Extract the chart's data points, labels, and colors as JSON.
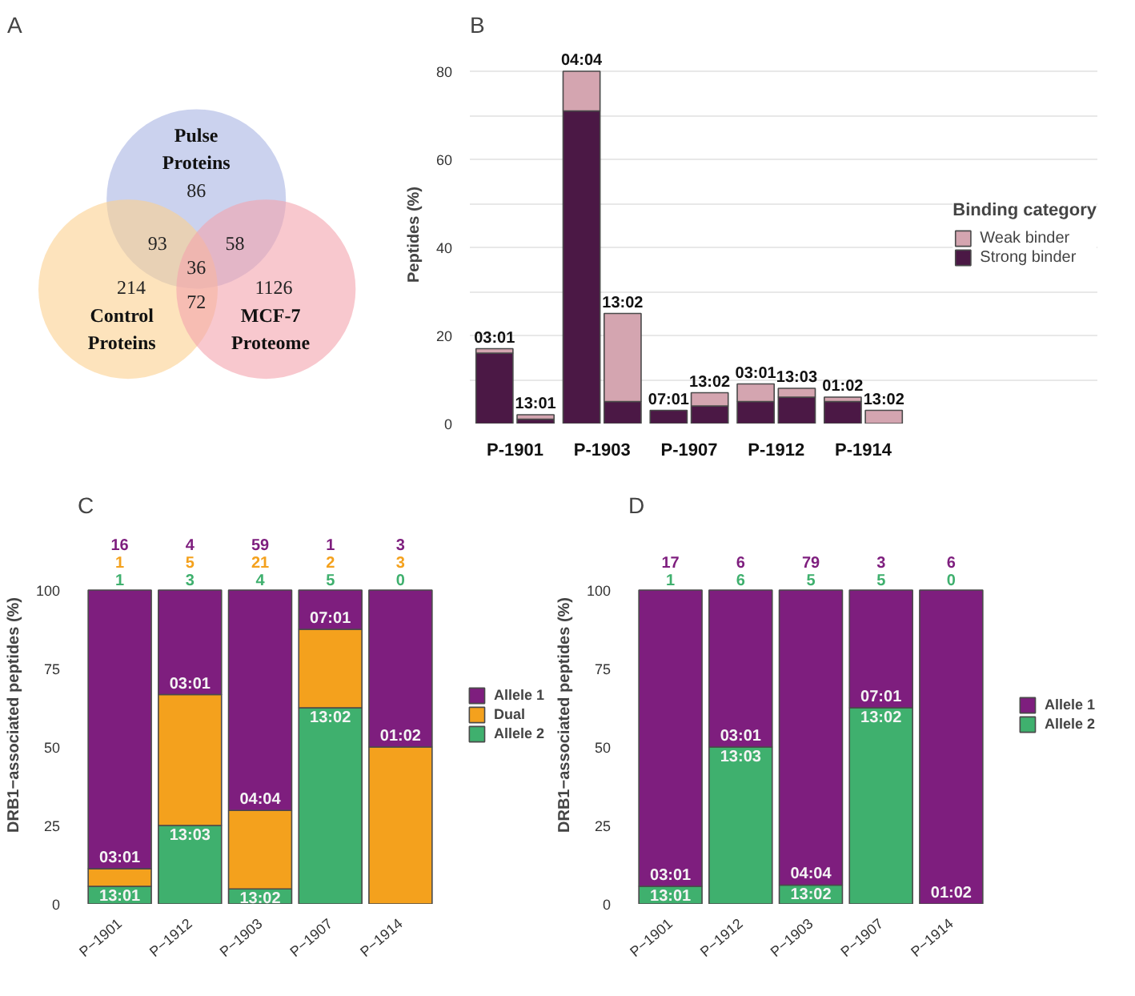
{
  "chart_data": [
    {
      "type": "other",
      "title": "A",
      "categories": [
        "Pulse Proteins",
        "Control Proteins",
        "MCF-7 Proteome"
      ],
      "colors": [
        "#a9b4e2",
        "#fbd08f",
        "#f4a3ad"
      ],
      "annotations": [
        "86",
        "93",
        "58",
        "36",
        "214",
        "72",
        "1126"
      ]
    },
    {
      "type": "bar",
      "title": "B",
      "ylabel": "Peptides (%)",
      "legend_title": "Binding category",
      "stacked": true,
      "categories": [
        "03:01",
        "13:01",
        "04:04",
        "13:02",
        "07:01",
        "13:02",
        "03:01",
        "13:03",
        "01:02",
        "13:02"
      ],
      "series": [
        {
          "name": "Strong binder",
          "color": "#4b1845",
          "values": [
            16,
            1,
            71,
            5,
            3,
            4,
            5,
            6,
            5,
            0
          ]
        },
        {
          "name": "Weak binder",
          "color": "#d4a5b0",
          "values": [
            1,
            1,
            9,
            20,
            0,
            3,
            4,
            2,
            1,
            3
          ]
        }
      ],
      "annotations": [
        "P-1901",
        "P-1903",
        "P-1907",
        "P-1912",
        "P-1914"
      ],
      "ylim": [
        0,
        80
      ],
      "yticks": [
        0,
        {
          "value": 10,
          "label": null
        },
        20,
        {
          "value": 30,
          "label": null
        },
        40,
        {
          "value": 50,
          "label": null
        },
        60,
        {
          "value": 70,
          "label": null
        },
        80
      ],
      "grid": "y",
      "legend": "right"
    },
    {
      "type": "bar",
      "title": "C",
      "ylabel": "DRB1−associated peptides (%)",
      "stacked": true,
      "categories": [
        "P−1901",
        "P−1912",
        "P−1903",
        "P−1907",
        "P−1914"
      ],
      "series": [
        {
          "name": "Allele 2",
          "color": "#3fb06e",
          "values": [
            5.6,
            25,
            4.8,
            62.5,
            0
          ]
        },
        {
          "name": "Dual",
          "color": "#f4a11d",
          "values": [
            5.6,
            41.7,
            25,
            25,
            50
          ]
        },
        {
          "name": "Allele 1",
          "color": "#7e1e7e",
          "values": [
            88.8,
            33.3,
            70.2,
            12.5,
            50
          ]
        }
      ],
      "annotations": [
        {
          "text": "16",
          "x": "P−1901",
          "y": 100
        },
        {
          "text": "1",
          "x": "P−1901",
          "y": 100
        },
        {
          "text": "1",
          "x": "P−1901",
          "y": 100
        },
        {
          "text": "4",
          "x": "P−1912",
          "y": 100
        },
        {
          "text": "5",
          "x": "P−1912",
          "y": 100
        },
        {
          "text": "3",
          "x": "P−1912",
          "y": 100
        },
        {
          "text": "59",
          "x": "P−1903",
          "y": 100
        },
        {
          "text": "21",
          "x": "P−1903",
          "y": 100
        },
        {
          "text": "4",
          "x": "P−1903",
          "y": 100
        },
        {
          "text": "1",
          "x": "P−1907",
          "y": 100
        },
        {
          "text": "2",
          "x": "P−1907",
          "y": 100
        },
        {
          "text": "5",
          "x": "P−1907",
          "y": 100
        },
        {
          "text": "3",
          "x": "P−1914",
          "y": 100
        },
        {
          "text": "3",
          "x": "P−1914",
          "y": 100
        },
        {
          "text": "0",
          "x": "P−1914",
          "y": 100
        },
        {
          "text": "03:01",
          "x": "P−1901",
          "y": 11.2
        },
        {
          "text": "13:01",
          "x": "P−1901",
          "y": 5.6
        },
        {
          "text": "03:01",
          "x": "P−1912",
          "y": 66.7
        },
        {
          "text": "13:03",
          "x": "P−1912",
          "y": 25
        },
        {
          "text": "04:04",
          "x": "P−1903",
          "y": 29.8
        },
        {
          "text": "13:02",
          "x": "P−1903",
          "y": 4.8
        },
        {
          "text": "07:01",
          "x": "P−1907",
          "y": 87.5
        },
        {
          "text": "13:02",
          "x": "P−1907",
          "y": 62.5
        },
        {
          "text": "01:02",
          "x": "P−1914",
          "y": 50
        }
      ],
      "ylim": [
        0,
        100
      ],
      "yticks": [
        0,
        25,
        50,
        75,
        100
      ],
      "legend": "right"
    },
    {
      "type": "bar",
      "title": "D",
      "ylabel": "DRB1−associated peptides (%)",
      "stacked": true,
      "categories": [
        "P−1901",
        "P−1912",
        "P−1903",
        "P−1907",
        "P−1914"
      ],
      "series": [
        {
          "name": "Allele 2",
          "color": "#3fb06e",
          "values": [
            5.6,
            50,
            6.0,
            62.5,
            0
          ]
        },
        {
          "name": "Allele 1",
          "color": "#7e1e7e",
          "values": [
            94.4,
            50,
            94.0,
            37.5,
            100
          ]
        }
      ],
      "annotations": [
        {
          "text": "17",
          "x": "P−1901",
          "y": 100
        },
        {
          "text": "1",
          "x": "P−1901",
          "y": 100
        },
        {
          "text": "6",
          "x": "P−1912",
          "y": 100
        },
        {
          "text": "6",
          "x": "P−1912",
          "y": 100
        },
        {
          "text": "79",
          "x": "P−1903",
          "y": 100
        },
        {
          "text": "5",
          "x": "P−1903",
          "y": 100
        },
        {
          "text": "3",
          "x": "P−1907",
          "y": 100
        },
        {
          "text": "5",
          "x": "P−1907",
          "y": 100
        },
        {
          "text": "6",
          "x": "P−1914",
          "y": 100
        },
        {
          "text": "0",
          "x": "P−1914",
          "y": 100
        },
        {
          "text": "03:01",
          "x": "P−1901",
          "y": 5.6
        },
        {
          "text": "13:01",
          "x": "P−1901",
          "y": 5.6
        },
        {
          "text": "03:01",
          "x": "P−1912",
          "y": 50
        },
        {
          "text": "13:03",
          "x": "P−1912",
          "y": 50
        },
        {
          "text": "04:04",
          "x": "P−1903",
          "y": 6.0
        },
        {
          "text": "13:02",
          "x": "P−1903",
          "y": 6.0
        },
        {
          "text": "07:01",
          "x": "P−1907",
          "y": 62.5
        },
        {
          "text": "13:02",
          "x": "P−1907",
          "y": 62.5
        },
        {
          "text": "01:02",
          "x": "P−1914",
          "y": 0
        }
      ],
      "ylim": [
        0,
        100
      ],
      "yticks": [
        0,
        25,
        50,
        75,
        100
      ],
      "legend": "right"
    }
  ]
}
